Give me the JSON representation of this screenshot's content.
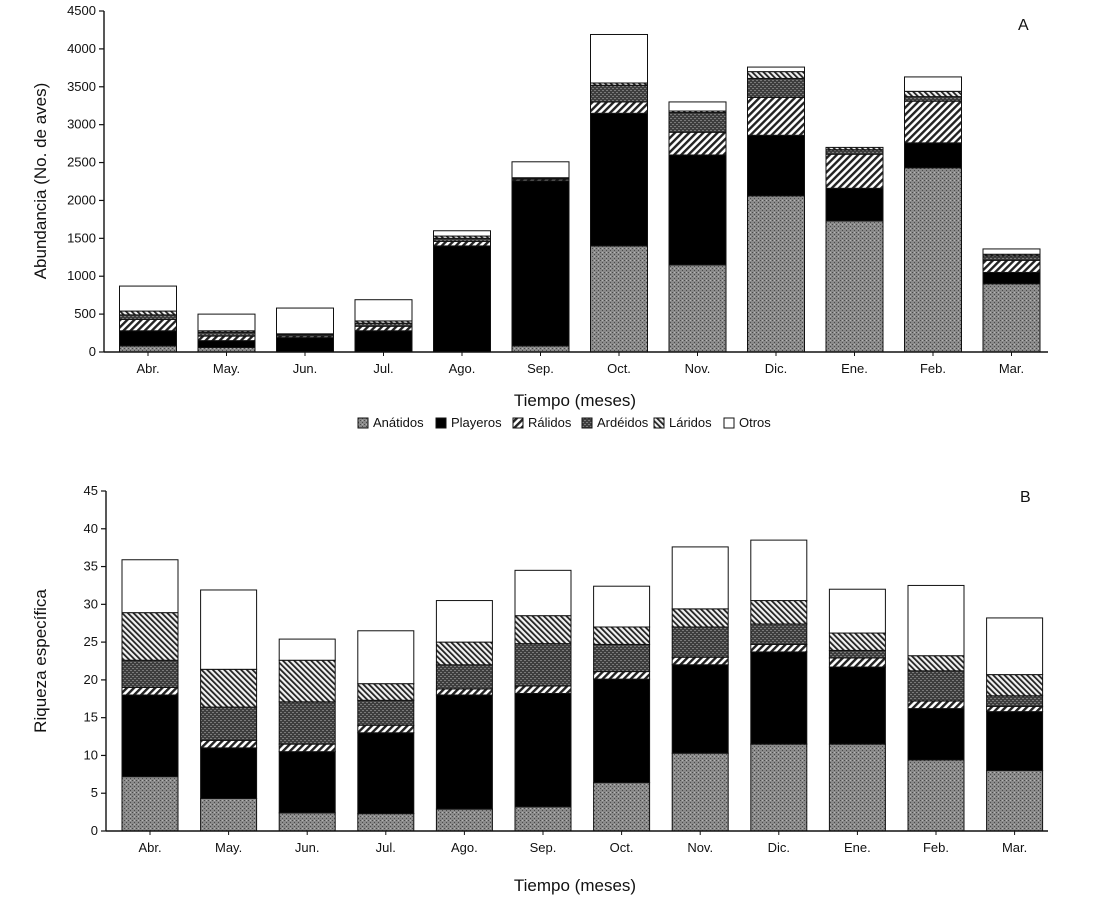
{
  "categories": [
    "Abr.",
    "May.",
    "Jun.",
    "Jul.",
    "Ago.",
    "Sep.",
    "Oct.",
    "Nov.",
    "Dic.",
    "Ene.",
    "Feb.",
    "Mar."
  ],
  "series_names": [
    "Anátidos",
    "Playeros",
    "Rálidos",
    "Ardéidos",
    "Láridos",
    "Otros"
  ],
  "chart_data": [
    {
      "type": "bar",
      "stacked": true,
      "panel_label": "A",
      "xlabel": "Tiempo (meses)",
      "ylabel": "Abundancia (No. de aves)",
      "ylim": [
        0,
        4500
      ],
      "yticks": [
        0,
        500,
        1000,
        1500,
        2000,
        2500,
        3000,
        3500,
        4000,
        4500
      ],
      "legend_position": "below",
      "categories": [
        "Abr.",
        "May.",
        "Jun.",
        "Jul.",
        "Ago.",
        "Sep.",
        "Oct.",
        "Nov.",
        "Dic.",
        "Ene.",
        "Feb.",
        "Mar."
      ],
      "series": [
        {
          "name": "Anátidos",
          "values": [
            80,
            60,
            0,
            0,
            0,
            80,
            1400,
            1150,
            2060,
            1730,
            2430,
            900
          ]
        },
        {
          "name": "Playeros",
          "values": [
            200,
            90,
            190,
            280,
            1400,
            2180,
            1750,
            1450,
            800,
            430,
            330,
            150
          ]
        },
        {
          "name": "Rálidos",
          "values": [
            150,
            60,
            20,
            60,
            60,
            20,
            150,
            300,
            500,
            450,
            550,
            160
          ]
        },
        {
          "name": "Ardéidos",
          "values": [
            60,
            50,
            20,
            40,
            40,
            10,
            220,
            260,
            250,
            60,
            60,
            60
          ]
        },
        {
          "name": "Láridos",
          "values": [
            50,
            20,
            10,
            30,
            30,
            10,
            30,
            20,
            90,
            30,
            70,
            20
          ]
        },
        {
          "name": "Otros",
          "values": [
            330,
            220,
            340,
            280,
            70,
            210,
            640,
            120,
            60,
            0,
            190,
            70
          ]
        }
      ]
    },
    {
      "type": "bar",
      "stacked": true,
      "panel_label": "B",
      "xlabel": "Tiempo (meses)",
      "ylabel": "Riqueza específica",
      "ylim": [
        0,
        45
      ],
      "yticks": [
        0,
        5,
        10,
        15,
        20,
        25,
        30,
        35,
        40,
        45
      ],
      "categories": [
        "Abr.",
        "May.",
        "Jun.",
        "Jul.",
        "Ago.",
        "Sep.",
        "Oct.",
        "Nov.",
        "Dic.",
        "Ene.",
        "Feb.",
        "Mar."
      ],
      "series": [
        {
          "name": "Anátidos",
          "values": [
            7.2,
            4.3,
            2.4,
            2.3,
            2.9,
            3.2,
            6.4,
            10.3,
            11.5,
            11.5,
            9.4,
            8.0
          ]
        },
        {
          "name": "Playeros",
          "values": [
            10.8,
            6.7,
            8.1,
            10.7,
            15.1,
            15.0,
            13.7,
            11.7,
            12.2,
            10.2,
            6.8,
            7.8
          ]
        },
        {
          "name": "Rálidos",
          "values": [
            1.0,
            1.0,
            1.0,
            1.0,
            0.8,
            1.0,
            1.0,
            1.0,
            1.0,
            1.2,
            1.0,
            0.7
          ]
        },
        {
          "name": "Ardéidos",
          "values": [
            3.6,
            4.4,
            5.6,
            3.3,
            3.2,
            5.6,
            3.6,
            4.0,
            2.7,
            1.0,
            4.0,
            1.4
          ]
        },
        {
          "name": "Láridos",
          "values": [
            6.3,
            5.0,
            5.5,
            2.2,
            3.0,
            3.7,
            2.3,
            2.4,
            3.1,
            2.3,
            2.0,
            2.8
          ]
        },
        {
          "name": "Otros",
          "values": [
            7.0,
            10.5,
            2.8,
            7.0,
            5.5,
            6.0,
            5.4,
            8.2,
            8.0,
            5.8,
            9.3,
            7.5
          ]
        }
      ]
    }
  ]
}
